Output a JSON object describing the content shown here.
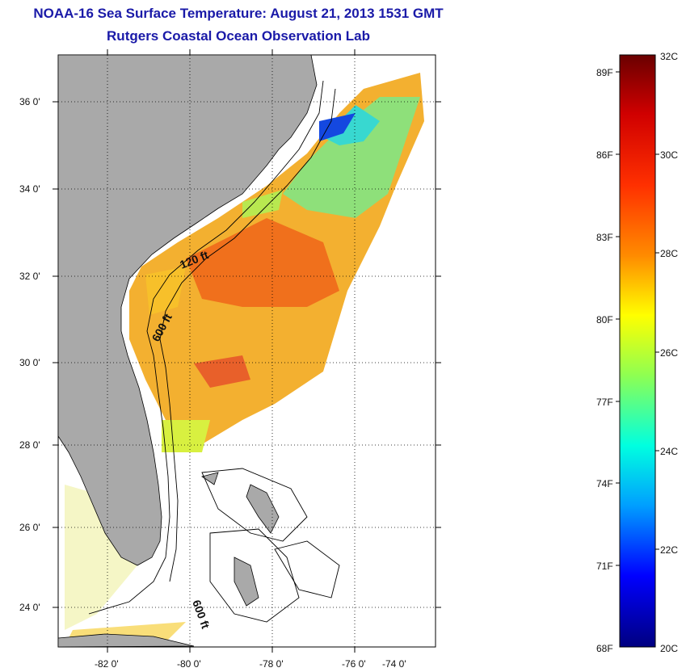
{
  "title": "NOAA-16 Sea Surface Temperature:  August 21, 2013 1531 GMT",
  "subtitle": "Rutgers Coastal Ocean Observation Lab",
  "map": {
    "lon_ticks": [
      "-82 0'",
      "-80 0'",
      "-78 0'",
      "-76 0'",
      "-74 0'"
    ],
    "lat_ticks": [
      "36 0'",
      "34 0'",
      "32 0'",
      "30 0'",
      "28 0'",
      "26 0'",
      "24 0'"
    ],
    "contours": [
      "120 ft",
      "600 ft",
      "600 ft"
    ],
    "land_color": "#a9a9a9"
  },
  "colorbar": {
    "celsius_labels": [
      "32C",
      "30C",
      "28C",
      "26C",
      "24C",
      "22C",
      "20C"
    ],
    "fahrenheit_labels": [
      "89F",
      "86F",
      "83F",
      "80F",
      "77F",
      "74F",
      "71F",
      "68F"
    ],
    "range_c": [
      20,
      32
    ],
    "colors": [
      "#7f0000",
      "#ff0000",
      "#ff8000",
      "#ffff00",
      "#80ff80",
      "#00ffff",
      "#0080ff",
      "#0000ff",
      "#00007f"
    ]
  }
}
